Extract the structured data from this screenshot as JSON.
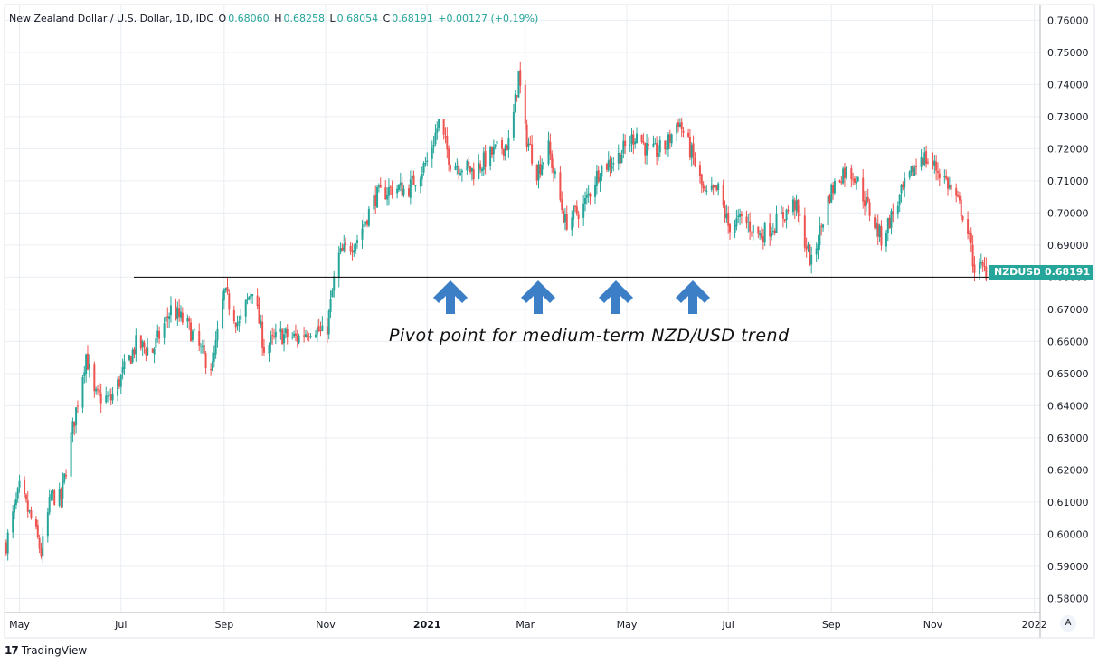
{
  "header": {
    "title": "New Zealand Dollar / U.S. Dollar, 1D, IDC",
    "open_label": "O",
    "open": "0.68060",
    "high_label": "H",
    "high": "0.68258",
    "low_label": "L",
    "low": "0.68054",
    "close_label": "C",
    "close": "0.68191",
    "change": "+0.00127 (+0.19%)"
  },
  "annotation": "Pivot point for medium-term NZD/USD trend",
  "symbol_tag": "NZDUSD",
  "price_tag": "0.68191",
  "auto_button": "A",
  "branding": "TradingView",
  "colors": {
    "up": "#26a69a",
    "down": "#ef5350",
    "arrow": "#3d7fc7",
    "grid": "#e9edf2",
    "pivot_line": "#000000"
  },
  "chart_data": {
    "type": "candlestick",
    "title": "New Zealand Dollar / U.S. Dollar, 1D, IDC",
    "y_ticks": [
      "0.58000",
      "0.59000",
      "0.60000",
      "0.61000",
      "0.62000",
      "0.63000",
      "0.64000",
      "0.65000",
      "0.66000",
      "0.67000",
      "0.68000",
      "0.69000",
      "0.70000",
      "0.71000",
      "0.72000",
      "0.73000",
      "0.74000",
      "0.75000",
      "0.76000"
    ],
    "x_ticks": [
      "May",
      "Jul",
      "Sep",
      "Nov",
      "2021",
      "Mar",
      "May",
      "Jul",
      "Sep",
      "Nov",
      "2022"
    ],
    "ylim": [
      0.5756,
      0.7649
    ],
    "grid": true,
    "pivot_level": 0.68,
    "last_price": 0.68191,
    "price_path": [
      {
        "date": "2020-04-23",
        "price": 0.597
      },
      {
        "date": "2020-05-01",
        "price": 0.614
      },
      {
        "date": "2020-05-10",
        "price": 0.602
      },
      {
        "date": "2020-05-14",
        "price": 0.594
      },
      {
        "date": "2020-05-20",
        "price": 0.612
      },
      {
        "date": "2020-05-26",
        "price": 0.611
      },
      {
        "date": "2020-06-01",
        "price": 0.63
      },
      {
        "date": "2020-06-10",
        "price": 0.656
      },
      {
        "date": "2020-06-15",
        "price": 0.643
      },
      {
        "date": "2020-06-25",
        "price": 0.642
      },
      {
        "date": "2020-07-10",
        "price": 0.659
      },
      {
        "date": "2020-07-20",
        "price": 0.657
      },
      {
        "date": "2020-07-31",
        "price": 0.67
      },
      {
        "date": "2020-08-10",
        "price": 0.665
      },
      {
        "date": "2020-08-20",
        "price": 0.655
      },
      {
        "date": "2020-08-25",
        "price": 0.652
      },
      {
        "date": "2020-09-01",
        "price": 0.675
      },
      {
        "date": "2020-09-10",
        "price": 0.665
      },
      {
        "date": "2020-09-18",
        "price": 0.677
      },
      {
        "date": "2020-09-25",
        "price": 0.658
      },
      {
        "date": "2020-10-05",
        "price": 0.662
      },
      {
        "date": "2020-10-15",
        "price": 0.661
      },
      {
        "date": "2020-10-25",
        "price": 0.665
      },
      {
        "date": "2020-11-01",
        "price": 0.661
      },
      {
        "date": "2020-11-08",
        "price": 0.686
      },
      {
        "date": "2020-11-20",
        "price": 0.692
      },
      {
        "date": "2020-12-01",
        "price": 0.705
      },
      {
        "date": "2020-12-12",
        "price": 0.708
      },
      {
        "date": "2020-12-20",
        "price": 0.707
      },
      {
        "date": "2021-01-01",
        "price": 0.716
      },
      {
        "date": "2021-01-08",
        "price": 0.728
      },
      {
        "date": "2021-01-15",
        "price": 0.716
      },
      {
        "date": "2021-01-29",
        "price": 0.713
      },
      {
        "date": "2021-02-10",
        "price": 0.719
      },
      {
        "date": "2021-02-20",
        "price": 0.722
      },
      {
        "date": "2021-02-25",
        "price": 0.743
      },
      {
        "date": "2021-03-01",
        "price": 0.725
      },
      {
        "date": "2021-03-08",
        "price": 0.713
      },
      {
        "date": "2021-03-15",
        "price": 0.72
      },
      {
        "date": "2021-03-25",
        "price": 0.697
      },
      {
        "date": "2021-04-05",
        "price": 0.702
      },
      {
        "date": "2021-04-15",
        "price": 0.714
      },
      {
        "date": "2021-04-25",
        "price": 0.717
      },
      {
        "date": "2021-05-07",
        "price": 0.725
      },
      {
        "date": "2021-05-15",
        "price": 0.718
      },
      {
        "date": "2021-05-25",
        "price": 0.721
      },
      {
        "date": "2021-06-01",
        "price": 0.729
      },
      {
        "date": "2021-06-10",
        "price": 0.717
      },
      {
        "date": "2021-06-17",
        "price": 0.705
      },
      {
        "date": "2021-06-25",
        "price": 0.707
      },
      {
        "date": "2021-07-01",
        "price": 0.696
      },
      {
        "date": "2021-07-10",
        "price": 0.698
      },
      {
        "date": "2021-07-20",
        "price": 0.693
      },
      {
        "date": "2021-07-30",
        "price": 0.697
      },
      {
        "date": "2021-08-10",
        "price": 0.703
      },
      {
        "date": "2021-08-20",
        "price": 0.684
      },
      {
        "date": "2021-08-31",
        "price": 0.706
      },
      {
        "date": "2021-09-08",
        "price": 0.713
      },
      {
        "date": "2021-09-15",
        "price": 0.712
      },
      {
        "date": "2021-09-25",
        "price": 0.699
      },
      {
        "date": "2021-10-01",
        "price": 0.692
      },
      {
        "date": "2021-10-15",
        "price": 0.708
      },
      {
        "date": "2021-10-25",
        "price": 0.718
      },
      {
        "date": "2021-11-01",
        "price": 0.715
      },
      {
        "date": "2021-11-08",
        "price": 0.711
      },
      {
        "date": "2021-11-15",
        "price": 0.704
      },
      {
        "date": "2021-11-20",
        "price": 0.699
      },
      {
        "date": "2021-11-26",
        "price": 0.683
      },
      {
        "date": "2021-12-03",
        "price": 0.682
      }
    ]
  }
}
